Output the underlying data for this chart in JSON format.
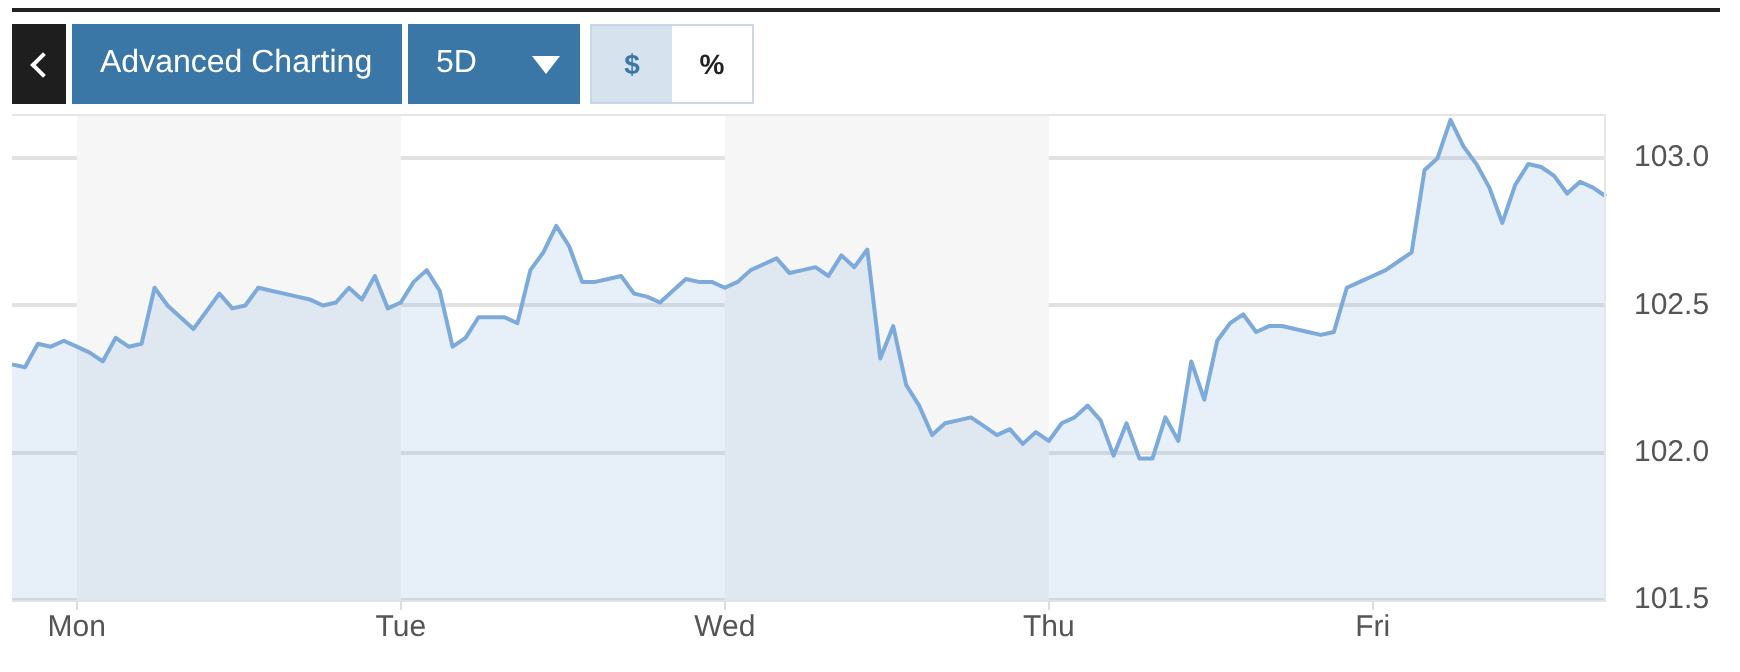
{
  "chart_data": {
    "type": "area",
    "annotations": [
      "Advanced Charting",
      "5D",
      "$",
      "%"
    ],
    "categories": [
      null,
      null,
      null,
      null,
      null,
      "Mon",
      null,
      null,
      null,
      null,
      null,
      null,
      null,
      null,
      null,
      null,
      null,
      null,
      null,
      null,
      null,
      null,
      null,
      null,
      null,
      null,
      null,
      null,
      null,
      null,
      "Tue",
      null,
      null,
      null,
      null,
      null,
      null,
      null,
      null,
      null,
      null,
      null,
      null,
      null,
      null,
      null,
      null,
      null,
      null,
      null,
      null,
      null,
      null,
      null,
      null,
      "Wed",
      null,
      null,
      null,
      null,
      null,
      null,
      null,
      null,
      null,
      null,
      null,
      null,
      null,
      null,
      null,
      null,
      null,
      null,
      null,
      null,
      null,
      null,
      null,
      null,
      "Thu",
      null,
      null,
      null,
      null,
      null,
      null,
      null,
      null,
      null,
      null,
      null,
      null,
      null,
      null,
      null,
      null,
      null,
      null,
      null,
      null,
      null,
      null,
      null,
      null,
      "Fri",
      null,
      null,
      null,
      null,
      null,
      null,
      null,
      null,
      null,
      null,
      null,
      null,
      null,
      null,
      null,
      null,
      null,
      null
    ],
    "ylim": [
      101.5,
      103.15
    ],
    "yticks": [
      {
        "value": 101.5,
        "label": "101.5"
      },
      {
        "value": 102,
        "label": "102.0"
      },
      {
        "value": 102.5,
        "label": "102.5"
      },
      {
        "value": 103,
        "label": "103.0"
      }
    ],
    "grid": "y",
    "legend": false,
    "marker": "none",
    "line_style": "solid",
    "bands": [
      {
        "axis": "x",
        "from": "Mon",
        "to": "Tue",
        "color": "#f6f6f6"
      },
      {
        "axis": "x",
        "from": "Wed",
        "to": "Thu",
        "color": "#f6f6f6"
      }
    ],
    "series": [
      {
        "color": "#7caadb",
        "values": [
          102.3,
          102.29,
          102.37,
          102.36,
          102.38,
          102.36,
          102.34,
          102.31,
          102.39,
          102.36,
          102.37,
          102.56,
          102.5,
          102.46,
          102.42,
          102.48,
          102.54,
          102.49,
          102.5,
          102.56,
          102.55,
          102.54,
          102.53,
          102.52,
          102.5,
          102.51,
          102.56,
          102.52,
          102.6,
          102.49,
          102.51,
          102.58,
          102.62,
          102.55,
          102.36,
          102.39,
          102.46,
          102.46,
          102.46,
          102.44,
          102.62,
          102.68,
          102.77,
          102.7,
          102.58,
          102.58,
          102.59,
          102.6,
          102.54,
          102.53,
          102.51,
          102.55,
          102.59,
          102.58,
          102.58,
          102.56,
          102.58,
          102.62,
          102.64,
          102.66,
          102.61,
          102.62,
          102.63,
          102.6,
          102.67,
          102.63,
          102.69,
          102.32,
          102.43,
          102.23,
          102.16,
          102.06,
          102.1,
          102.11,
          102.12,
          102.09,
          102.06,
          102.08,
          102.03,
          102.07,
          102.04,
          102.1,
          102.12,
          102.16,
          102.11,
          101.99,
          102.1,
          101.98,
          101.98,
          102.12,
          102.04,
          102.31,
          102.18,
          102.38,
          102.44,
          102.47,
          102.41,
          102.43,
          102.43,
          102.42,
          102.41,
          102.4,
          102.41,
          102.56,
          102.58,
          102.6,
          102.62,
          102.65,
          102.68,
          102.96,
          103.0,
          103.13,
          103.04,
          102.98,
          102.9,
          102.78,
          102.91,
          102.98,
          102.97,
          102.94,
          102.88,
          102.92,
          102.9,
          102.87
        ]
      }
    ]
  }
}
